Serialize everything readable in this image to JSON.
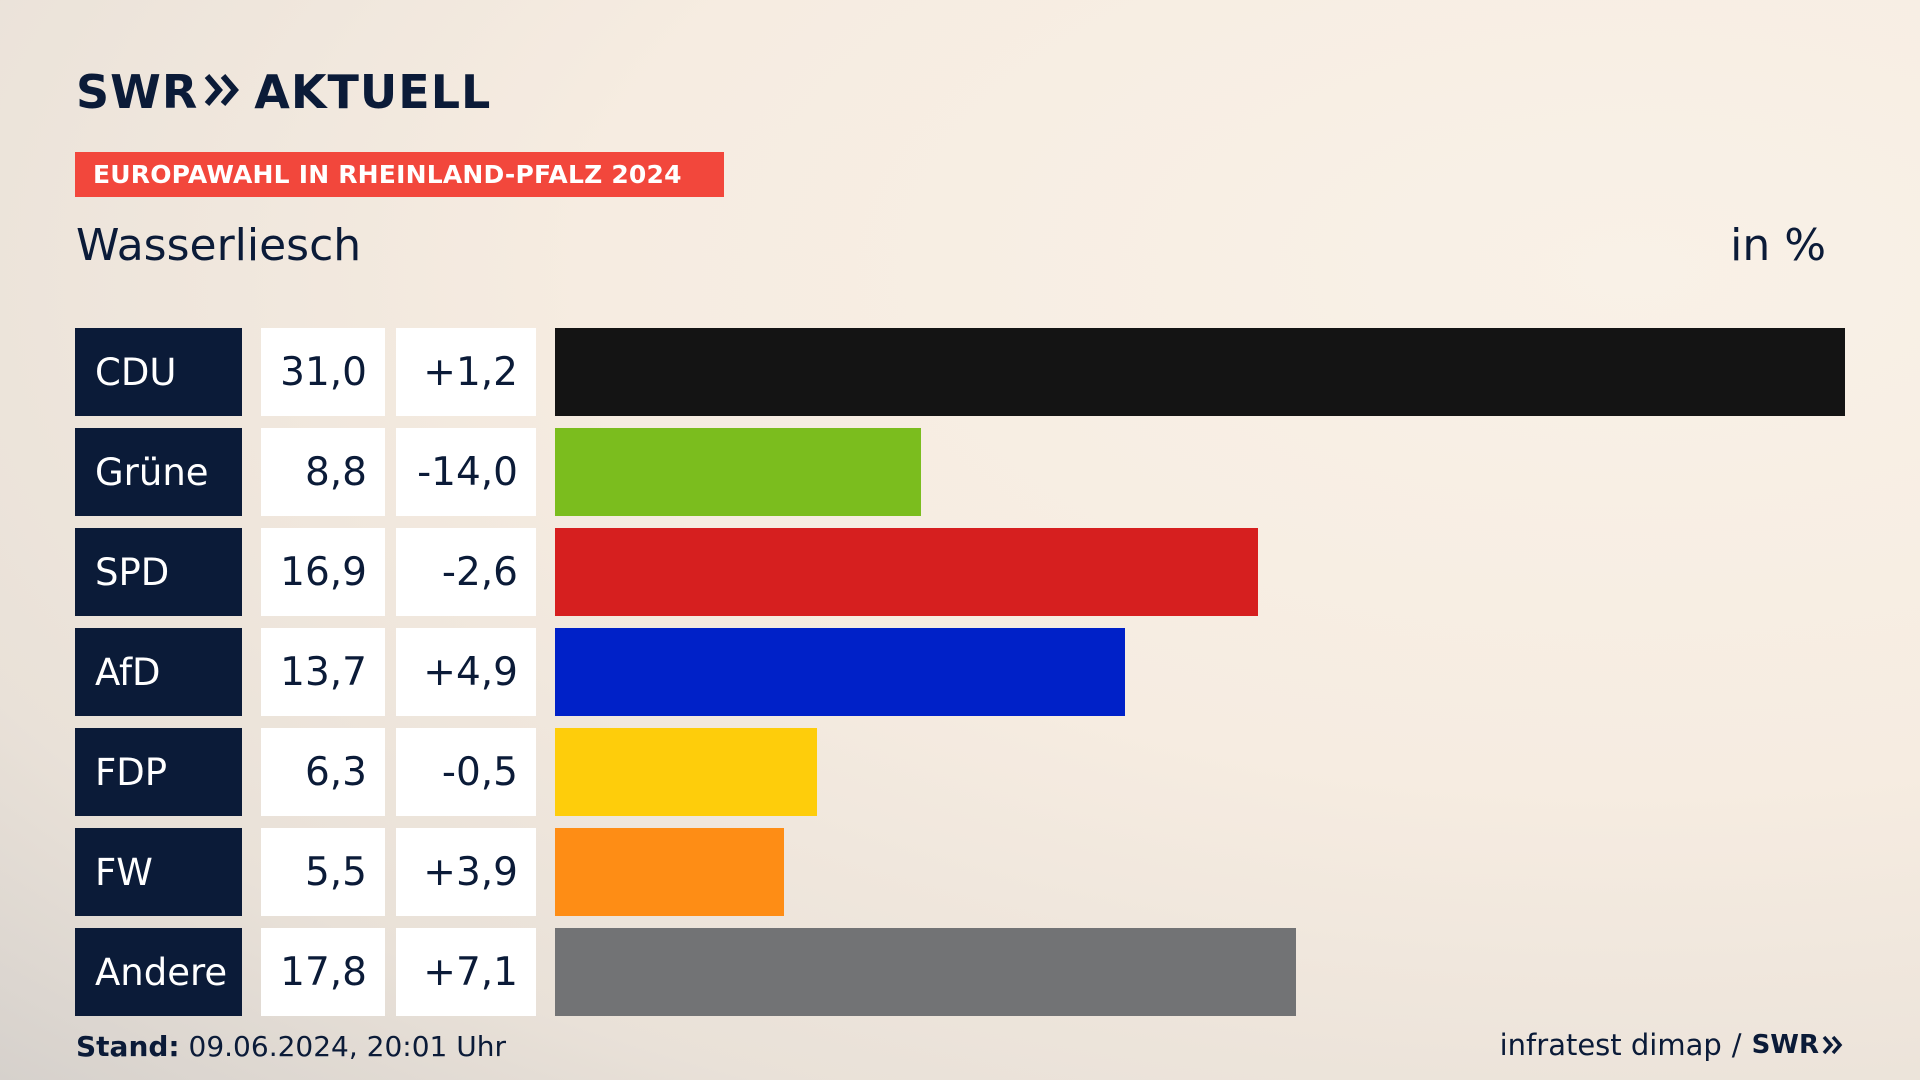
{
  "brand": {
    "swr": "SWR",
    "aktuell": "AKTUELL"
  },
  "banner": {
    "text": "EUROPAWAHL IN RHEINLAND-PFALZ 2024",
    "color": "#f2473c"
  },
  "subtitle": "Wasserliesch",
  "unit_label": "in %",
  "chart_data": {
    "type": "bar",
    "orientation": "horizontal",
    "title": "EUROPAWAHL IN RHEINLAND-PFALZ 2024",
    "subtitle": "Wasserliesch",
    "unit": "in %",
    "categories": [
      "CDU",
      "Grüne",
      "SPD",
      "AfD",
      "FDP",
      "FW",
      "Andere"
    ],
    "values": [
      31.0,
      8.8,
      16.9,
      13.7,
      6.3,
      5.5,
      17.8
    ],
    "value_labels": [
      "31,0",
      "8,8",
      "16,9",
      "13,7",
      "6,3",
      "5,5",
      "17,8"
    ],
    "change_labels": [
      "+1,2",
      "-14,0",
      "-2,6",
      "+4,9",
      "-0,5",
      "+3,9",
      "+7,1"
    ],
    "changes": [
      1.2,
      -14.0,
      -2.6,
      4.9,
      -0.5,
      3.9,
      7.1
    ],
    "colors": [
      "#141414",
      "#7bbd1e",
      "#d61f1f",
      "#0021c8",
      "#fecd0b",
      "#fe8d15",
      "#727375"
    ],
    "xlim": [
      0,
      31.0
    ],
    "grid": false,
    "legend": "none"
  },
  "footer": {
    "stand_label": "Stand:",
    "stand_value": "09.06.2024, 20:01 Uhr",
    "source": "infratest dimap",
    "separator": "/",
    "source_brand": "SWR"
  }
}
